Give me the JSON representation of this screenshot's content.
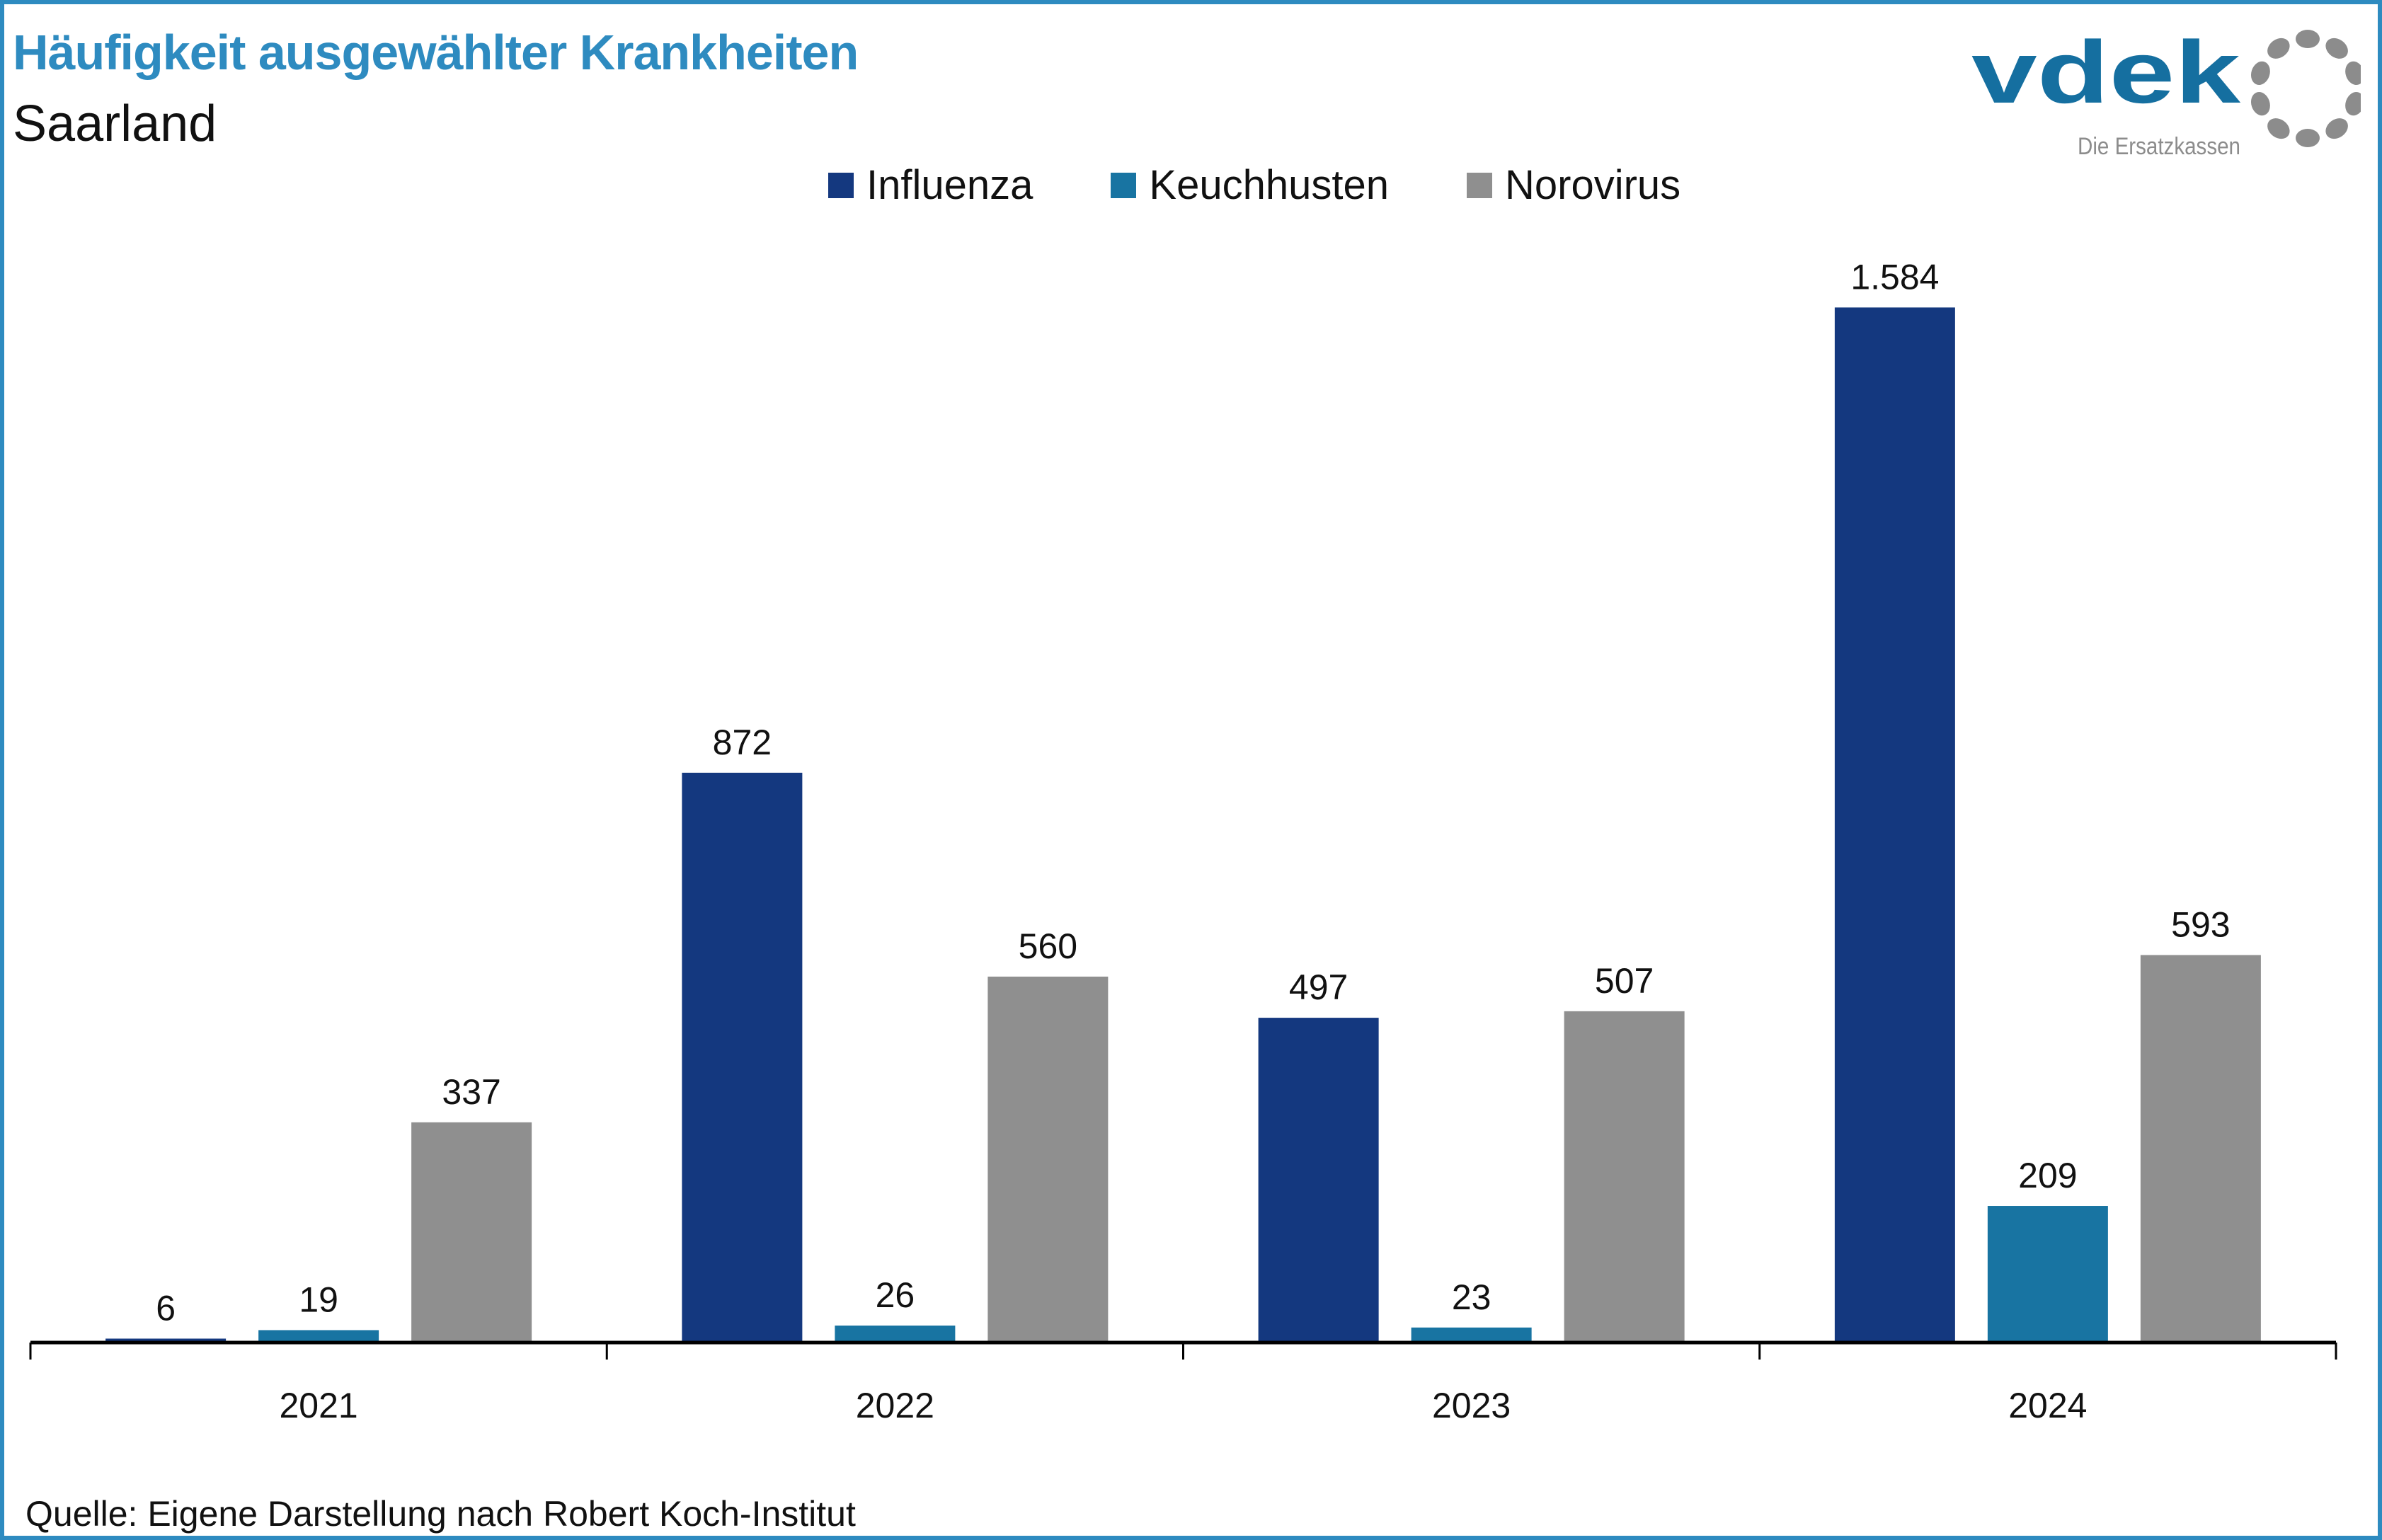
{
  "header": {
    "title": "Häufigkeit ausgewählter Krankheiten",
    "subtitle": "Saarland"
  },
  "logo": {
    "name": "vdek",
    "tagline": "Die Ersatzkassen",
    "color": "#156fa0",
    "ring_color": "#8c8c8c"
  },
  "source": "Quelle: Eigene Darstellung nach Robert Koch-Institut",
  "colors": {
    "border": "#2e8bc0",
    "title": "#2e8bc0"
  },
  "chart_data": {
    "type": "bar",
    "title": "Häufigkeit ausgewählter Krankheiten",
    "subtitle": "Saarland",
    "categories": [
      "2021",
      "2022",
      "2023",
      "2024"
    ],
    "series": [
      {
        "name": "Influenza",
        "color": "#14387f",
        "values": [
          6,
          872,
          497,
          1584
        ],
        "labels": [
          "6",
          "872",
          "497",
          "1.584"
        ]
      },
      {
        "name": "Keuchhusten",
        "color": "#1874a2",
        "values": [
          19,
          26,
          23,
          209
        ],
        "labels": [
          "19",
          "26",
          "23",
          "209"
        ]
      },
      {
        "name": "Norovirus",
        "color": "#8f8f8f",
        "values": [
          337,
          560,
          507,
          593
        ],
        "labels": [
          "337",
          "560",
          "507",
          "593"
        ]
      }
    ],
    "xlabel": "",
    "ylabel": "",
    "ylim": [
      0,
      1800
    ],
    "grid": false,
    "legend": "top-center"
  }
}
